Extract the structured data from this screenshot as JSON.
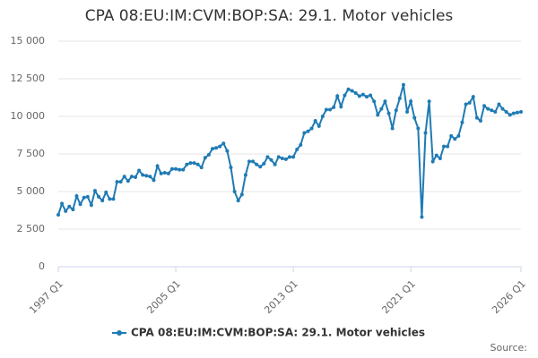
{
  "chart_data": {
    "type": "line",
    "title": "CPA 08:EU:IM:CVM:BOP:SA: 29.1. Motor vehicles",
    "source": "Source:",
    "categories": [
      "1997 Q1",
      null,
      null,
      null,
      null,
      null,
      null,
      null,
      null,
      null,
      null,
      null,
      null,
      null,
      null,
      null,
      null,
      null,
      null,
      null,
      null,
      null,
      null,
      null,
      null,
      null,
      null,
      null,
      null,
      null,
      null,
      null,
      "2005 Q1",
      null,
      null,
      null,
      null,
      null,
      null,
      null,
      null,
      null,
      null,
      null,
      null,
      null,
      null,
      null,
      null,
      null,
      null,
      null,
      null,
      null,
      null,
      null,
      null,
      null,
      null,
      null,
      null,
      null,
      null,
      null,
      "2013 Q1",
      null,
      null,
      null,
      null,
      null,
      null,
      null,
      null,
      null,
      null,
      null,
      null,
      null,
      null,
      null,
      null,
      null,
      null,
      null,
      null,
      null,
      null,
      null,
      null,
      null,
      null,
      null,
      null,
      null,
      null,
      null,
      "2021 Q1",
      null,
      null,
      null,
      null,
      null,
      null,
      null,
      null,
      null,
      null,
      null,
      null,
      null,
      null,
      null,
      null,
      null,
      null,
      null,
      null,
      null,
      null,
      null,
      null,
      null,
      null,
      null,
      null,
      null,
      "2026 Q1"
    ],
    "series": [
      {
        "name": "CPA 08:EU:IM:CVM:BOP:SA: 29.1. Motor vehicles",
        "color": "#1f7bb4",
        "values": [
          3450,
          4200,
          3700,
          4000,
          3800,
          4700,
          4150,
          4600,
          4650,
          4100,
          5050,
          4650,
          4400,
          4950,
          4500,
          4500,
          5650,
          5650,
          6000,
          5700,
          6000,
          5950,
          6400,
          6100,
          6050,
          6000,
          5750,
          6700,
          6200,
          6250,
          6200,
          6500,
          6500,
          6450,
          6450,
          6800,
          6900,
          6900,
          6800,
          6600,
          7250,
          7450,
          7850,
          7900,
          8000,
          8200,
          7700,
          6600,
          5000,
          4400,
          4800,
          6100,
          7000,
          7000,
          6800,
          6650,
          6850,
          7300,
          7100,
          6800,
          7300,
          7200,
          7150,
          7300,
          7300,
          7800,
          8100,
          8900,
          9000,
          9200,
          9700,
          9350,
          10000,
          10450,
          10450,
          10600,
          11350,
          10650,
          11400,
          11800,
          11700,
          11550,
          11350,
          11450,
          11300,
          11400,
          11000,
          10100,
          10500,
          11000,
          10200,
          9200,
          10400,
          11200,
          12100,
          10300,
          11000,
          9900,
          9200,
          3300,
          8900,
          11000,
          7000,
          7400,
          7200,
          8000,
          8000,
          8700,
          8500,
          8700,
          9600,
          10800,
          10900,
          11300,
          9900,
          9700,
          10700,
          10500,
          10400,
          10300,
          10800,
          10500,
          10300,
          10100,
          10200,
          10250,
          10300
        ]
      }
    ],
    "ylim": [
      0,
      15000
    ],
    "yticks": [
      0,
      {
        "value": 2500,
        "label": "2 500"
      },
      {
        "value": 5000,
        "label": "5 000"
      },
      {
        "value": 7500,
        "label": "7 500"
      },
      {
        "value": 10000,
        "label": "10 000"
      },
      {
        "value": 12500,
        "label": "12 500"
      },
      {
        "value": 15000,
        "label": "15 000"
      }
    ],
    "grid": true
  }
}
